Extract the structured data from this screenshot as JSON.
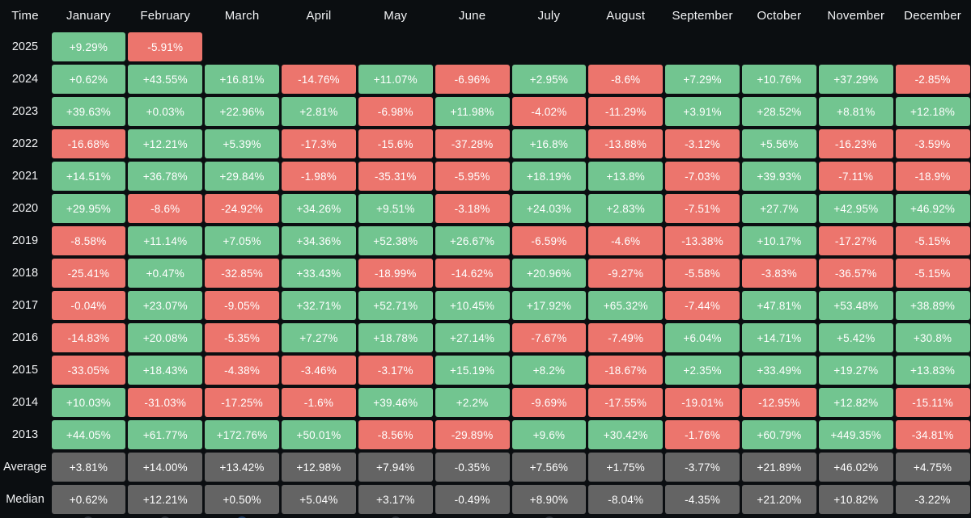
{
  "chart_data": {
    "type": "heatmap",
    "corner_label": "Time",
    "columns": [
      "January",
      "February",
      "March",
      "April",
      "May",
      "June",
      "July",
      "August",
      "September",
      "October",
      "November",
      "December"
    ],
    "rows": [
      {
        "label": "2025",
        "kind": "year",
        "values": [
          "+9.29%",
          "-5.91%",
          null,
          null,
          null,
          null,
          null,
          null,
          null,
          null,
          null,
          null
        ]
      },
      {
        "label": "2024",
        "kind": "year",
        "values": [
          "+0.62%",
          "+43.55%",
          "+16.81%",
          "-14.76%",
          "+11.07%",
          "-6.96%",
          "+2.95%",
          "-8.6%",
          "+7.29%",
          "+10.76%",
          "+37.29%",
          "-2.85%"
        ]
      },
      {
        "label": "2023",
        "kind": "year",
        "values": [
          "+39.63%",
          "+0.03%",
          "+22.96%",
          "+2.81%",
          "-6.98%",
          "+11.98%",
          "-4.02%",
          "-11.29%",
          "+3.91%",
          "+28.52%",
          "+8.81%",
          "+12.18%"
        ]
      },
      {
        "label": "2022",
        "kind": "year",
        "values": [
          "-16.68%",
          "+12.21%",
          "+5.39%",
          "-17.3%",
          "-15.6%",
          "-37.28%",
          "+16.8%",
          "-13.88%",
          "-3.12%",
          "+5.56%",
          "-16.23%",
          "-3.59%"
        ]
      },
      {
        "label": "2021",
        "kind": "year",
        "values": [
          "+14.51%",
          "+36.78%",
          "+29.84%",
          "-1.98%",
          "-35.31%",
          "-5.95%",
          "+18.19%",
          "+13.8%",
          "-7.03%",
          "+39.93%",
          "-7.11%",
          "-18.9%"
        ]
      },
      {
        "label": "2020",
        "kind": "year",
        "values": [
          "+29.95%",
          "-8.6%",
          "-24.92%",
          "+34.26%",
          "+9.51%",
          "-3.18%",
          "+24.03%",
          "+2.83%",
          "-7.51%",
          "+27.7%",
          "+42.95%",
          "+46.92%"
        ]
      },
      {
        "label": "2019",
        "kind": "year",
        "values": [
          "-8.58%",
          "+11.14%",
          "+7.05%",
          "+34.36%",
          "+52.38%",
          "+26.67%",
          "-6.59%",
          "-4.6%",
          "-13.38%",
          "+10.17%",
          "-17.27%",
          "-5.15%"
        ]
      },
      {
        "label": "2018",
        "kind": "year",
        "values": [
          "-25.41%",
          "+0.47%",
          "-32.85%",
          "+33.43%",
          "-18.99%",
          "-14.62%",
          "+20.96%",
          "-9.27%",
          "-5.58%",
          "-3.83%",
          "-36.57%",
          "-5.15%"
        ]
      },
      {
        "label": "2017",
        "kind": "year",
        "values": [
          "-0.04%",
          "+23.07%",
          "-9.05%",
          "+32.71%",
          "+52.71%",
          "+10.45%",
          "+17.92%",
          "+65.32%",
          "-7.44%",
          "+47.81%",
          "+53.48%",
          "+38.89%"
        ]
      },
      {
        "label": "2016",
        "kind": "year",
        "values": [
          "-14.83%",
          "+20.08%",
          "-5.35%",
          "+7.27%",
          "+18.78%",
          "+27.14%",
          "-7.67%",
          "-7.49%",
          "+6.04%",
          "+14.71%",
          "+5.42%",
          "+30.8%"
        ]
      },
      {
        "label": "2015",
        "kind": "year",
        "values": [
          "-33.05%",
          "+18.43%",
          "-4.38%",
          "-3.46%",
          "-3.17%",
          "+15.19%",
          "+8.2%",
          "-18.67%",
          "+2.35%",
          "+33.49%",
          "+19.27%",
          "+13.83%"
        ]
      },
      {
        "label": "2014",
        "kind": "year",
        "values": [
          "+10.03%",
          "-31.03%",
          "-17.25%",
          "-1.6%",
          "+39.46%",
          "+2.2%",
          "-9.69%",
          "-17.55%",
          "-19.01%",
          "-12.95%",
          "+12.82%",
          "-15.11%"
        ]
      },
      {
        "label": "2013",
        "kind": "year",
        "values": [
          "+44.05%",
          "+61.77%",
          "+172.76%",
          "+50.01%",
          "-8.56%",
          "-29.89%",
          "+9.6%",
          "+30.42%",
          "-1.76%",
          "+60.79%",
          "+449.35%",
          "-34.81%"
        ]
      },
      {
        "label": "Average",
        "kind": "summary",
        "values": [
          "+3.81%",
          "+14.00%",
          "+13.42%",
          "+12.98%",
          "+7.94%",
          "-0.35%",
          "+7.56%",
          "+1.75%",
          "-3.77%",
          "+21.89%",
          "+46.02%",
          "+4.75%"
        ]
      },
      {
        "label": "Median",
        "kind": "summary",
        "values": [
          "+0.62%",
          "+12.21%",
          "+0.50%",
          "+5.04%",
          "+3.17%",
          "-0.49%",
          "+8.90%",
          "-8.04%",
          "-4.35%",
          "+21.20%",
          "+10.82%",
          "-3.22%"
        ]
      }
    ],
    "colors": {
      "positive": "#72c590",
      "negative": "#ec756d",
      "summary": "#646464",
      "background": "#0b0e11",
      "text": "#ffffff"
    },
    "layout": {
      "legend": "none",
      "grid": "off"
    }
  }
}
